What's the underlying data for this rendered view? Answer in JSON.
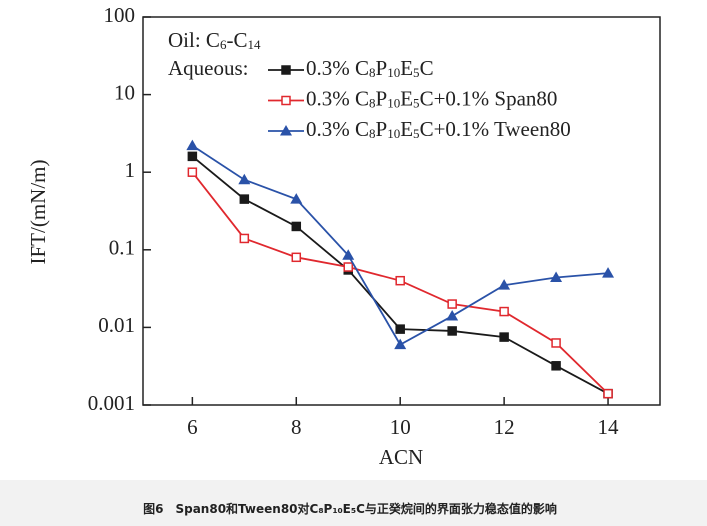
{
  "chart_data": {
    "type": "line",
    "x_label": "ACN",
    "y_label": "IFT/(mN/m)",
    "annotation": "Oil: C6-C14",
    "legend_title": "Aqueous:",
    "caption": "图6　Span80和Tween80对C8P10E5C与正癸烷间的界面张力稳态值的影响",
    "x": [
      6,
      7,
      8,
      9,
      10,
      11,
      12,
      13,
      14
    ],
    "series": [
      {
        "name": "0.3% C8P10E5C",
        "color": "#1a1a1a",
        "marker": "filled-square",
        "values": [
          1.6,
          0.45,
          0.2,
          0.055,
          0.0095,
          0.009,
          0.0075,
          0.0032,
          0.0014
        ]
      },
      {
        "name": "0.3% C8P10E5C+0.1% Span80",
        "color": "#e0282e",
        "marker": "open-square",
        "values": [
          1.0,
          0.14,
          0.08,
          0.06,
          0.04,
          0.02,
          0.016,
          0.0063,
          0.0014
        ]
      },
      {
        "name": "0.3% C8P10E5C+0.1% Tween80",
        "color": "#2a52a8",
        "marker": "triangle",
        "values": [
          2.2,
          0.8,
          0.45,
          0.085,
          0.006,
          0.014,
          0.035,
          0.044,
          0.05
        ]
      }
    ],
    "xlim": [
      5.05,
      15
    ],
    "xticks": [
      6,
      8,
      10,
      12,
      14
    ],
    "ylim": [
      0.001,
      100
    ],
    "yticks": [
      100,
      10,
      1,
      0.1,
      0.01,
      0.001
    ],
    "log_y": true
  }
}
